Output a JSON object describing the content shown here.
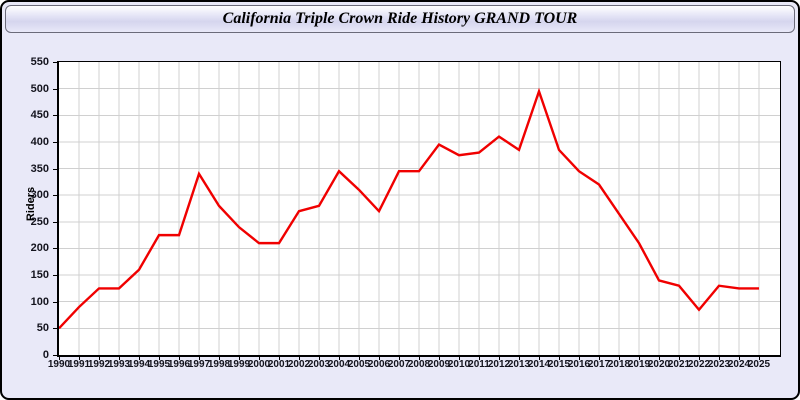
{
  "window": {
    "title": "California Triple Crown Ride History GRAND TOUR"
  },
  "chart_data": {
    "type": "line",
    "title": "California Triple Crown Ride History GRAND TOUR",
    "xlabel": "",
    "ylabel": "Riders",
    "ylim": [
      0,
      550
    ],
    "yticks": [
      0,
      50,
      100,
      150,
      200,
      250,
      300,
      350,
      400,
      450,
      500,
      550
    ],
    "grid": true,
    "legend_position": "none",
    "categories": [
      "1990",
      "1991",
      "1992",
      "1993",
      "1994",
      "1995",
      "1996",
      "1997",
      "1998",
      "1999",
      "2000",
      "2001",
      "2002",
      "2003",
      "2004",
      "2005",
      "2006",
      "2007",
      "2008",
      "2009",
      "2010",
      "2011",
      "2012",
      "2013",
      "2014",
      "2015",
      "2016",
      "2017",
      "2018",
      "2019",
      "2020",
      "2021",
      "2022",
      "2023",
      "2024",
      "2025"
    ],
    "series": [
      {
        "name": "Riders",
        "color": "#f00000",
        "values": [
          50,
          90,
          125,
          125,
          160,
          225,
          225,
          340,
          280,
          240,
          210,
          210,
          270,
          280,
          345,
          310,
          270,
          345,
          345,
          395,
          375,
          380,
          410,
          385,
          495,
          385,
          345,
          320,
          265,
          210,
          140,
          130,
          85,
          130,
          125,
          125
        ]
      }
    ]
  },
  "colors": {
    "window_background": "#e9e9f8",
    "plot_background": "#ffffff",
    "gridline": "#d0d0d0",
    "axis": "#000000",
    "line": "#f00000",
    "label_text": "#14141e"
  }
}
